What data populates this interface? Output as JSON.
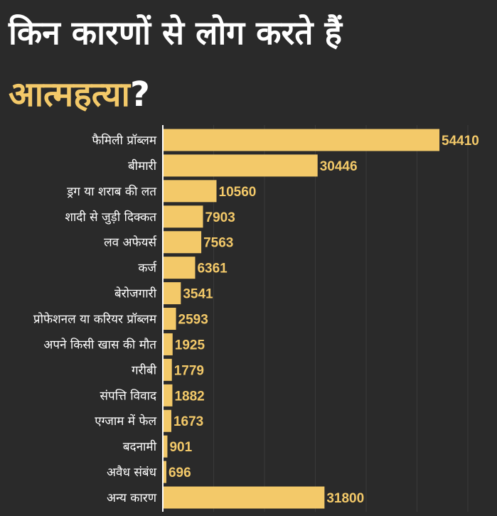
{
  "title": {
    "line1": "किन कारणों से लोग करते हैं",
    "highlight": "आत्महत्या",
    "suffix": "?"
  },
  "colors": {
    "background": "#2a2a2a",
    "bar": "#f3c969",
    "text": "#ffffff",
    "grid": "#3a3a3a"
  },
  "chart_data": {
    "type": "bar",
    "orientation": "horizontal",
    "title": "किन कारणों से लोग करते हैं आत्महत्या?",
    "categories": [
      "फैमिली प्रॉब्लम",
      "बीमारी",
      "ड्रग या शराब की लत",
      "शादी से जुड़ी दिक्कत",
      "लव अफेयर्स",
      "कर्ज",
      "बेरोजगारी",
      "प्रोफेशनल या करियर प्रॉब्लम",
      "अपने किसी खास की मौत",
      "गरीबी",
      "संपत्ति विवाद",
      "एग्जाम में फेल",
      "बदनामी",
      "अवैध संबंध",
      "अन्य कारण"
    ],
    "values": [
      54410,
      30446,
      10560,
      7903,
      7563,
      6361,
      3541,
      2593,
      1925,
      1779,
      1882,
      1673,
      901,
      696,
      31800
    ],
    "xlim": [
      0,
      60000
    ],
    "grid": true,
    "legend": "none"
  }
}
